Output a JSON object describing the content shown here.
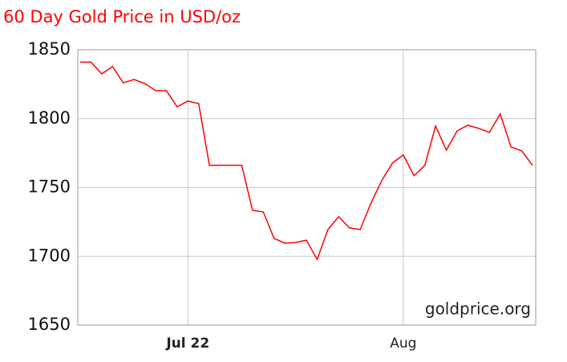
{
  "chart_data": {
    "type": "line",
    "title": "60 Day Gold Price in USD/oz",
    "watermark": "goldprice.org",
    "categories": [
      null,
      null,
      null,
      null,
      null,
      null,
      null,
      null,
      null,
      null,
      "Jul 22",
      null,
      null,
      null,
      null,
      null,
      null,
      null,
      null,
      null,
      null,
      null,
      null,
      null,
      null,
      null,
      null,
      null,
      null,
      null,
      "Aug",
      null,
      null,
      null,
      null,
      null,
      null,
      null,
      null,
      null,
      null,
      null,
      null
    ],
    "series": [
      {
        "name": "Gold",
        "color": "#ff0000",
        "values": [
          1841,
          1841,
          1832.5,
          1837.8,
          1826,
          1828.4,
          1825.5,
          1820.3,
          1820.3,
          1808.6,
          1812.7,
          1810.9,
          1766,
          1766,
          1766,
          1766,
          1733.4,
          1732.2,
          1713,
          1709.5,
          1710,
          1711.7,
          1697.7,
          1719.4,
          1728.7,
          1720.6,
          1719.4,
          1738.6,
          1755,
          1767.8,
          1773.6,
          1758.5,
          1766,
          1794.6,
          1777.1,
          1791.1,
          1795.2,
          1792.9,
          1790,
          1803.4,
          1779.4,
          1776.5,
          1766
        ]
      }
    ],
    "ylim": [
      1650,
      1850
    ],
    "yticks": [
      1650,
      1700,
      1750,
      1800,
      1850
    ],
    "grid": true
  }
}
